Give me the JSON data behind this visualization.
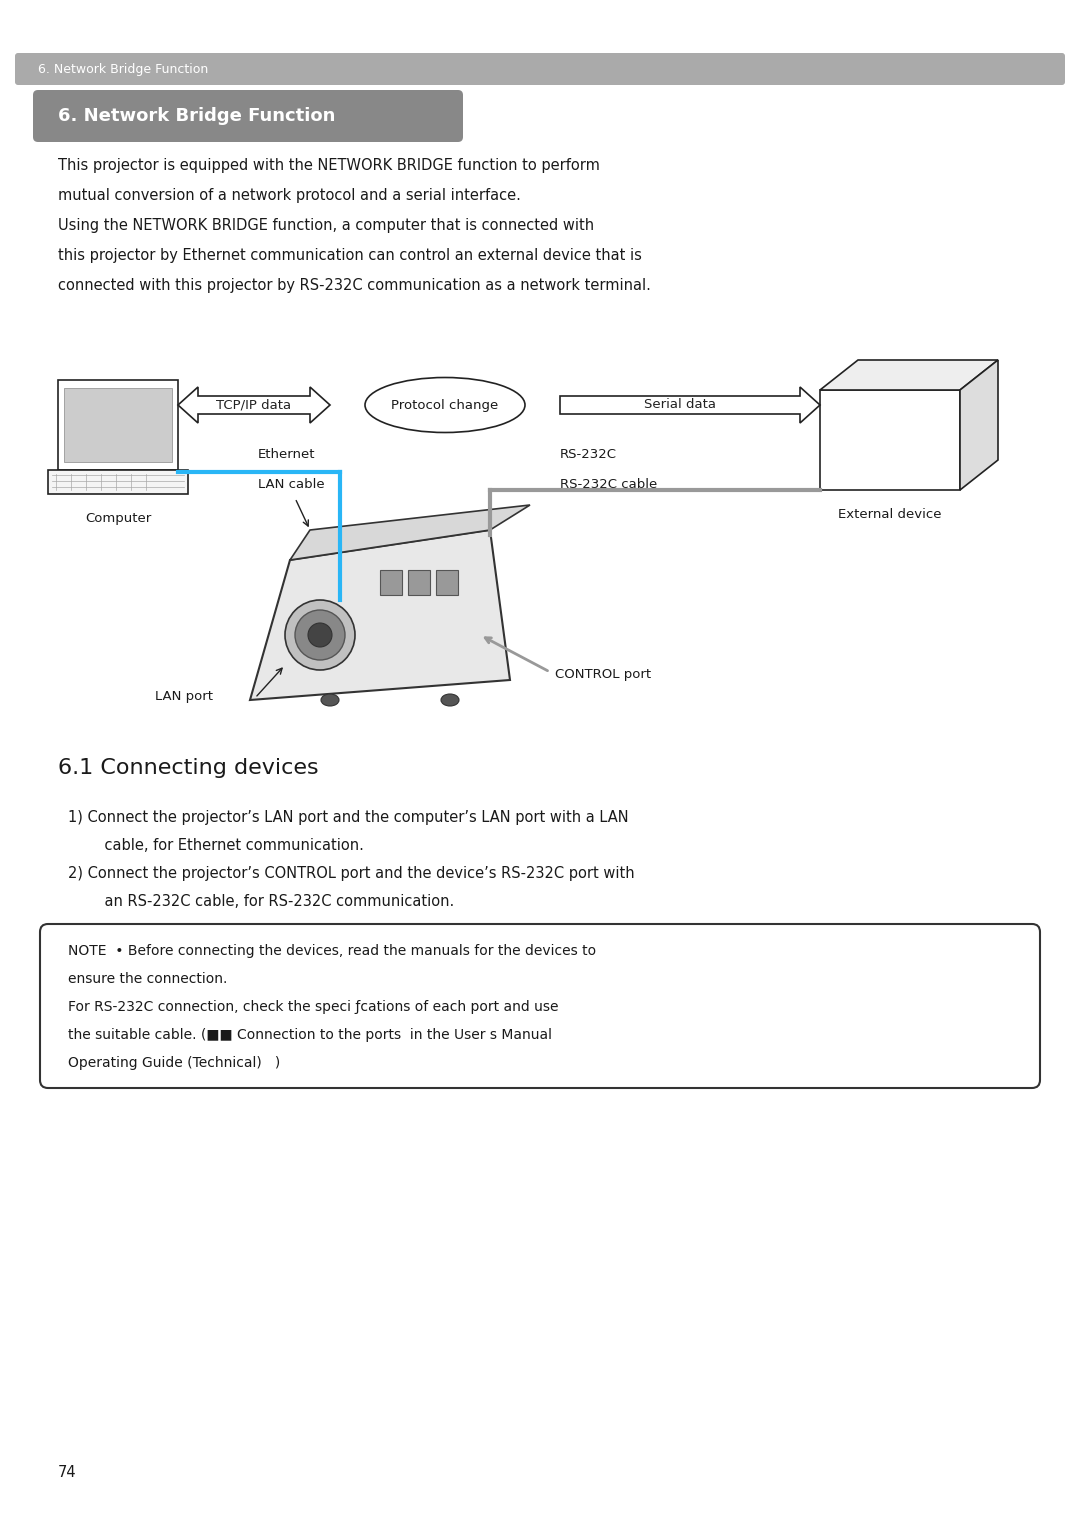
{
  "page_bg": "#ffffff",
  "header_bar_color": "#aaaaaa",
  "header_text": "6. Network Bridge Function",
  "header_text_color": "#ffffff",
  "section_title_bg": "#888888",
  "section_title_text": "6. Network Bridge Function",
  "section_title_text_color": "#ffffff",
  "body_text_color": "#1a1a1a",
  "paragraph1_lines": [
    "This projector is equipped with the NETWORK BRIDGE function to perform",
    "mutual conversion of a network protocol and a serial interface.",
    "Using the NETWORK BRIDGE function, a computer that is connected with",
    "this projector by Ethernet communication can control an external device that is",
    "connected with this projector by RS-232C communication as a network terminal."
  ],
  "subsection_title": "6.1 Connecting devices",
  "list_item1_line1": "1) Connect the projector’s LAN port and the computer’s LAN port with a LAN",
  "list_item1_line2": "    cable, for Ethernet communication.",
  "list_item2_line1": "2) Connect the projector’s CONTROL port and the device’s RS-232C port with",
  "list_item2_line2": "    an RS-232C cable, for RS-232C communication.",
  "note_line1": "NOTE  • Before connecting the devices, read the manuals for the devices to",
  "note_line2": "ensure the connection.",
  "note_line3": "For RS-232C connection, check the speci ƒcations of each port and use",
  "note_line4": "the suitable cable. (■■ Connection to the ports  in the User s Manual",
  "note_line5": "Operating Guide (Technical)   )",
  "page_number": "74",
  "diag_tcp_label": "TCP/IP data",
  "diag_proto_label": "Protocol change",
  "diag_serial_label": "Serial data",
  "diag_ethernet_label": "Ethernet",
  "diag_lan_cable_label": "LAN cable",
  "diag_rs232c_label": "RS-232C",
  "diag_rs232c_cable_label": "RS-232C cable",
  "diag_ext_label": "External device",
  "diag_comp_label": "Computer",
  "diag_lan_port_label": "LAN port",
  "diag_ctrl_port_label": "CONTROL port",
  "lan_cable_color": "#29b6f6",
  "rs232c_cable_color": "#999999",
  "arrow_color": "#222222",
  "note_border_color": "#333333"
}
